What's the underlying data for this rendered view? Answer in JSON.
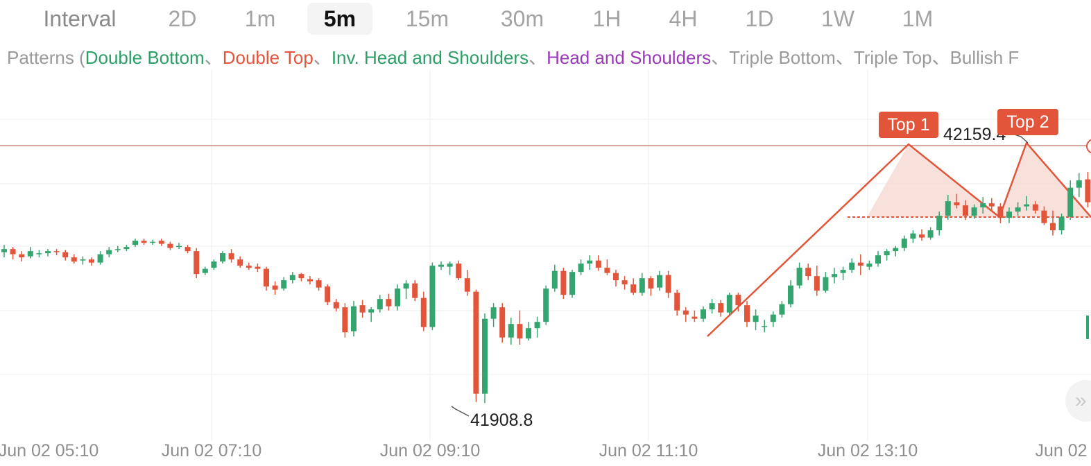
{
  "interval_tabs": {
    "label": "Interval",
    "items": [
      "2D",
      "1m",
      "5m",
      "15m",
      "30m",
      "1H",
      "4H",
      "1D",
      "1W",
      "1M"
    ],
    "active": "5m"
  },
  "patterns": {
    "prefix": "Patterns (",
    "items": [
      {
        "label": "Double Bottom",
        "color": "#2e9e67"
      },
      {
        "label": "Double Top",
        "color": "#e2553b"
      },
      {
        "label": "Inv. Head and Shoulders",
        "color": "#2e9e67"
      },
      {
        "label": "Head and Shoulders",
        "color": "#9b3ab8"
      },
      {
        "label": "Triple Bottom",
        "color": "#9a9a9a"
      },
      {
        "label": "Triple Top",
        "color": "#9a9a9a"
      },
      {
        "label": "Bullish F",
        "color": "#9a9a9a"
      }
    ],
    "separator": "、"
  },
  "annotations": {
    "low_price": "41908.8",
    "high_price": "42159.4",
    "top1": "Top 1",
    "top2": "Top 2"
  },
  "colors": {
    "up": "#35a56f",
    "down": "#e2553b",
    "pattern": "#e2553b"
  },
  "icons": {
    "scroll": "chevron-right-icon"
  },
  "scroll_glyph": "»",
  "x_axis": [
    "Jun 02 05:10",
    "Jun 02 07:10",
    "Jun 02 09:10",
    "Jun 02 11:10",
    "Jun 02 13:10",
    "Jun 02"
  ],
  "chart_data": {
    "type": "candlestick",
    "interval": "5m",
    "price_low": 41908.8,
    "price_high": 42159.4,
    "candles": [
      [
        42057,
        42064,
        42052,
        42060
      ],
      [
        42060,
        42062,
        42050,
        42055
      ],
      [
        42055,
        42058,
        42048,
        42052
      ],
      [
        42053,
        42062,
        42051,
        42058
      ],
      [
        42055,
        42059,
        42052,
        42056
      ],
      [
        42056,
        42060,
        42053,
        42058
      ],
      [
        42058,
        42060,
        42054,
        42057
      ],
      [
        42057,
        42059,
        42049,
        42052
      ],
      [
        42052,
        42055,
        42046,
        42048
      ],
      [
        42049,
        42053,
        42045,
        42050
      ],
      [
        42050,
        42052,
        42044,
        42047
      ],
      [
        42047,
        42058,
        42045,
        42055
      ],
      [
        42055,
        42062,
        42052,
        42059
      ],
      [
        42059,
        42063,
        42057,
        42060
      ],
      [
        42060,
        42064,
        42058,
        42062
      ],
      [
        42064,
        42070,
        42062,
        42068
      ],
      [
        42068,
        42070,
        42064,
        42066
      ],
      [
        42066,
        42069,
        42064,
        42067
      ],
      [
        42068,
        42070,
        42063,
        42065
      ],
      [
        42065,
        42067,
        42059,
        42061
      ],
      [
        42062,
        42066,
        42060,
        42063
      ],
      [
        42062,
        42064,
        42056,
        42058
      ],
      [
        42058,
        42061,
        42032,
        42036
      ],
      [
        42037,
        42043,
        42035,
        42041
      ],
      [
        42042,
        42050,
        42040,
        42048
      ],
      [
        42048,
        42058,
        42046,
        42056
      ],
      [
        42056,
        42060,
        42047,
        42050
      ],
      [
        42050,
        42053,
        42042,
        42044
      ],
      [
        42044,
        42047,
        42040,
        42042
      ],
      [
        42043,
        42046,
        42038,
        42041
      ],
      [
        42041,
        42043,
        42020,
        42024
      ],
      [
        42025,
        42029,
        42016,
        42021
      ],
      [
        42022,
        42033,
        42020,
        42030
      ],
      [
        42030,
        42038,
        42027,
        42035
      ],
      [
        42036,
        42037,
        42029,
        42032
      ],
      [
        42031,
        42034,
        42026,
        42029
      ],
      [
        42030,
        42032,
        42020,
        42023
      ],
      [
        42024,
        42026,
        42006,
        42009
      ],
      [
        42009,
        42012,
        42000,
        42003
      ],
      [
        42004,
        42008,
        41975,
        41980
      ],
      [
        41981,
        42010,
        41976,
        42005
      ],
      [
        42006,
        42011,
        41994,
        41999
      ],
      [
        41999,
        42004,
        41990,
        42002
      ],
      [
        42002,
        42016,
        41999,
        42012
      ],
      [
        42012,
        42017,
        42001,
        42005
      ],
      [
        42005,
        42026,
        42001,
        42022
      ],
      [
        42022,
        42030,
        42012,
        42027
      ],
      [
        42027,
        42030,
        42010,
        42013
      ],
      [
        42013,
        42019,
        41981,
        41985
      ],
      [
        41985,
        42047,
        41982,
        42044
      ],
      [
        42043,
        42048,
        42040,
        42045
      ],
      [
        42043,
        42048,
        42035,
        42046
      ],
      [
        42046,
        42049,
        42030,
        42032
      ],
      [
        42032,
        42040,
        42015,
        42019
      ],
      [
        42019,
        42021,
        41913,
        41921
      ],
      [
        41921,
        41998,
        41912,
        41993
      ],
      [
        41993,
        42008,
        41985,
        42004
      ],
      [
        42004,
        42008,
        41970,
        41975
      ],
      [
        41975,
        41994,
        41968,
        41988
      ],
      [
        41988,
        42001,
        41968,
        41974
      ],
      [
        41974,
        41990,
        41972,
        41984
      ],
      [
        41984,
        41995,
        41975,
        41990
      ],
      [
        41990,
        42025,
        41987,
        42022
      ],
      [
        42022,
        42045,
        42019,
        42039
      ],
      [
        42039,
        42042,
        42012,
        42016
      ],
      [
        42016,
        42040,
        42013,
        42038
      ],
      [
        42038,
        42050,
        42035,
        42046
      ],
      [
        42046,
        42054,
        42040,
        42049
      ],
      [
        42049,
        42054,
        42039,
        42042
      ],
      [
        42042,
        42050,
        42035,
        42037
      ],
      [
        42037,
        42040,
        42024,
        42030
      ],
      [
        42030,
        42034,
        42021,
        42026
      ],
      [
        42026,
        42032,
        42016,
        42018
      ],
      [
        42018,
        42037,
        42015,
        42032
      ],
      [
        42032,
        42034,
        42015,
        42022
      ],
      [
        42023,
        42039,
        42020,
        42035
      ],
      [
        42035,
        42039,
        42013,
        42018
      ],
      [
        42018,
        42021,
        41996,
        42001
      ],
      [
        42001,
        42004,
        41990,
        41997
      ],
      [
        41995,
        42001,
        41990,
        41993
      ],
      [
        41993,
        42005,
        41990,
        42002
      ],
      [
        42002,
        42012,
        41998,
        42008
      ],
      [
        42008,
        42011,
        41995,
        41999
      ],
      [
        41999,
        42018,
        41996,
        42016
      ],
      [
        42016,
        42018,
        42000,
        42006
      ],
      [
        42006,
        42010,
        41985,
        41990
      ],
      [
        41990,
        42002,
        41982,
        41996
      ],
      [
        41986,
        41992,
        41980,
        41986
      ],
      [
        41990,
        42000,
        41985,
        41997
      ],
      [
        41997,
        42010,
        41994,
        42007
      ],
      [
        42007,
        42030,
        42004,
        42025
      ],
      [
        42025,
        42047,
        42022,
        42042
      ],
      [
        42042,
        42046,
        42030,
        42034
      ],
      [
        42034,
        42044,
        42015,
        42020
      ],
      [
        42020,
        42038,
        42018,
        42033
      ],
      [
        42033,
        42042,
        42027,
        42036
      ],
      [
        42037,
        42043,
        42030,
        42040
      ],
      [
        42040,
        42051,
        42037,
        42047
      ],
      [
        42047,
        42055,
        42035,
        42044
      ],
      [
        42043,
        42049,
        42040,
        42046
      ],
      [
        42046,
        42058,
        42043,
        42054
      ],
      [
        42054,
        42060,
        42049,
        42058
      ],
      [
        42058,
        42063,
        42053,
        42061
      ],
      [
        42061,
        42073,
        42058,
        42070
      ],
      [
        42070,
        42078,
        42066,
        42075
      ],
      [
        42074,
        42079,
        42068,
        42071
      ],
      [
        42071,
        42081,
        42069,
        42078
      ],
      [
        42078,
        42096,
        42073,
        42092
      ],
      [
        42092,
        42112,
        42088,
        42106
      ],
      [
        42105,
        42113,
        42099,
        42102
      ],
      [
        42102,
        42107,
        42088,
        42092
      ],
      [
        42092,
        42103,
        42089,
        42100
      ],
      [
        42100,
        42110,
        42094,
        42104
      ],
      [
        42104,
        42109,
        42096,
        42101
      ],
      [
        42101,
        42104,
        42085,
        42090
      ],
      [
        42090,
        42100,
        42085,
        42096
      ],
      [
        42096,
        42105,
        42092,
        42100
      ],
      [
        42101,
        42111,
        42097,
        42103
      ],
      [
        42103,
        42106,
        42094,
        42097
      ],
      [
        42097,
        42101,
        42083,
        42085
      ],
      [
        42085,
        42097,
        42073,
        42078
      ],
      [
        42078,
        42094,
        42074,
        42091
      ],
      [
        42091,
        42126,
        42088,
        42119
      ],
      [
        42119,
        42133,
        42110,
        42126
      ],
      [
        42127,
        42134,
        42100,
        42105
      ],
      [
        42105,
        42111,
        42088,
        42093
      ],
      [
        42093,
        42104,
        42088,
        42100
      ],
      [
        42100,
        42102,
        42083,
        42087
      ],
      [
        42088,
        42102,
        42084,
        42091
      ]
    ]
  }
}
